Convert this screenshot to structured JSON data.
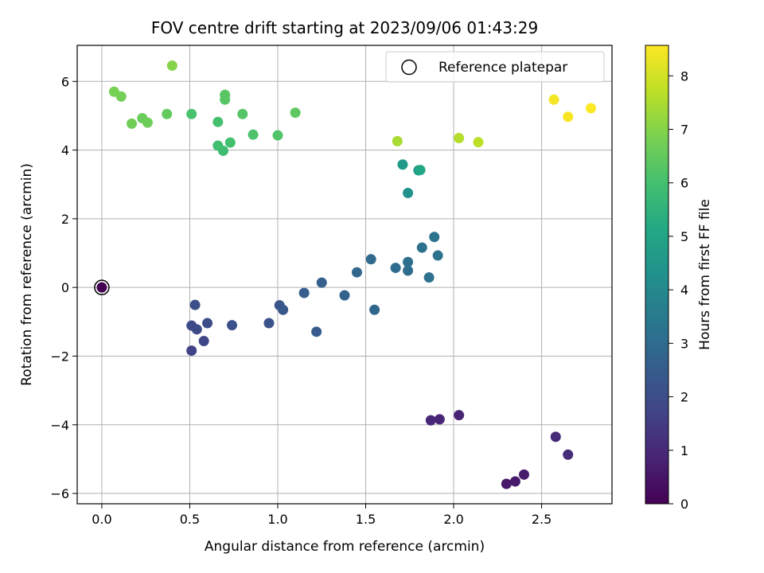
{
  "chart_data": {
    "type": "scatter",
    "title": "FOV centre drift starting at 2023/09/06 01:43:29",
    "xlabel": "Angular distance from reference (arcmin)",
    "ylabel": "Rotation from reference (arcmin)",
    "xlim": [
      -0.14,
      2.9
    ],
    "ylim": [
      -6.3,
      7.05
    ],
    "xticks": [
      0.0,
      0.5,
      1.0,
      1.5,
      2.0,
      2.5
    ],
    "xtick_labels": [
      "0.0",
      "0.5",
      "1.0",
      "1.5",
      "2.0",
      "2.5"
    ],
    "yticks": [
      -6,
      -4,
      -2,
      0,
      2,
      4,
      6
    ],
    "ytick_labels": [
      "−6",
      "−4",
      "−2",
      "0",
      "2",
      "4",
      "6"
    ],
    "grid": true,
    "legend": {
      "position": "top-right",
      "entries": [
        "Reference platepar"
      ]
    },
    "colorbar": {
      "label": "Hours from first FF file",
      "min": 0,
      "max": 8.57,
      "ticks": [
        0,
        1,
        2,
        3,
        4,
        5,
        6,
        7,
        8
      ],
      "tick_labels": [
        "0",
        "1",
        "2",
        "3",
        "4",
        "5",
        "6",
        "7",
        "8"
      ],
      "colormap": "viridis"
    },
    "reference_point": {
      "x": 0.0,
      "y": 0.0
    },
    "points": [
      {
        "x": 0.0,
        "y": 0.0,
        "t": 0.0
      },
      {
        "x": 2.3,
        "y": -5.72,
        "t": 0.55
      },
      {
        "x": 2.35,
        "y": -5.65,
        "t": 0.6
      },
      {
        "x": 2.4,
        "y": -5.45,
        "t": 0.65
      },
      {
        "x": 2.03,
        "y": -3.72,
        "t": 0.85
      },
      {
        "x": 1.92,
        "y": -3.84,
        "t": 0.9
      },
      {
        "x": 1.87,
        "y": -3.87,
        "t": 0.95
      },
      {
        "x": 2.58,
        "y": -4.35,
        "t": 1.05
      },
      {
        "x": 2.65,
        "y": -4.87,
        "t": 1.1
      },
      {
        "x": 0.51,
        "y": -1.84,
        "t": 1.7
      },
      {
        "x": 0.58,
        "y": -1.56,
        "t": 1.8
      },
      {
        "x": 0.51,
        "y": -1.11,
        "t": 1.9
      },
      {
        "x": 0.54,
        "y": -1.22,
        "t": 1.95
      },
      {
        "x": 0.6,
        "y": -1.04,
        "t": 2.0
      },
      {
        "x": 0.53,
        "y": -0.51,
        "t": 2.05
      },
      {
        "x": 0.74,
        "y": -1.1,
        "t": 2.1
      },
      {
        "x": 0.95,
        "y": -1.04,
        "t": 2.2
      },
      {
        "x": 1.01,
        "y": -0.52,
        "t": 2.3
      },
      {
        "x": 1.03,
        "y": -0.65,
        "t": 2.35
      },
      {
        "x": 1.22,
        "y": -1.29,
        "t": 2.45
      },
      {
        "x": 1.15,
        "y": -0.16,
        "t": 2.5
      },
      {
        "x": 1.25,
        "y": 0.14,
        "t": 2.6
      },
      {
        "x": 1.38,
        "y": -0.23,
        "t": 2.7
      },
      {
        "x": 1.45,
        "y": 0.44,
        "t": 2.8
      },
      {
        "x": 1.55,
        "y": -0.65,
        "t": 2.85
      },
      {
        "x": 1.53,
        "y": 0.82,
        "t": 2.95
      },
      {
        "x": 1.67,
        "y": 0.57,
        "t": 3.0
      },
      {
        "x": 1.74,
        "y": 0.49,
        "t": 3.05
      },
      {
        "x": 1.74,
        "y": 0.74,
        "t": 3.1
      },
      {
        "x": 1.86,
        "y": 0.29,
        "t": 3.15
      },
      {
        "x": 1.82,
        "y": 1.16,
        "t": 3.2
      },
      {
        "x": 1.91,
        "y": 0.93,
        "t": 3.25
      },
      {
        "x": 1.89,
        "y": 1.47,
        "t": 3.3
      },
      {
        "x": 1.74,
        "y": 2.75,
        "t": 4.3
      },
      {
        "x": 1.8,
        "y": 3.41,
        "t": 4.5
      },
      {
        "x": 1.71,
        "y": 3.58,
        "t": 4.6
      },
      {
        "x": 1.81,
        "y": 3.42,
        "t": 5.1
      },
      {
        "x": 0.69,
        "y": 3.98,
        "t": 5.9
      },
      {
        "x": 0.66,
        "y": 4.13,
        "t": 5.95
      },
      {
        "x": 0.73,
        "y": 4.22,
        "t": 6.0
      },
      {
        "x": 0.66,
        "y": 4.82,
        "t": 6.05
      },
      {
        "x": 0.51,
        "y": 5.05,
        "t": 6.1
      },
      {
        "x": 0.86,
        "y": 4.45,
        "t": 6.15
      },
      {
        "x": 1.0,
        "y": 4.43,
        "t": 6.2
      },
      {
        "x": 0.8,
        "y": 5.05,
        "t": 6.25
      },
      {
        "x": 0.7,
        "y": 5.47,
        "t": 6.3
      },
      {
        "x": 0.7,
        "y": 5.61,
        "t": 6.35
      },
      {
        "x": 1.1,
        "y": 5.09,
        "t": 6.4
      },
      {
        "x": 0.37,
        "y": 5.05,
        "t": 6.5
      },
      {
        "x": 0.23,
        "y": 4.93,
        "t": 6.6
      },
      {
        "x": 0.26,
        "y": 4.8,
        "t": 6.65
      },
      {
        "x": 0.17,
        "y": 4.77,
        "t": 6.7
      },
      {
        "x": 0.11,
        "y": 5.56,
        "t": 6.75
      },
      {
        "x": 0.07,
        "y": 5.7,
        "t": 6.8
      },
      {
        "x": 0.4,
        "y": 6.46,
        "t": 7.0
      },
      {
        "x": 1.68,
        "y": 4.26,
        "t": 7.45
      },
      {
        "x": 2.03,
        "y": 4.35,
        "t": 7.6
      },
      {
        "x": 2.14,
        "y": 4.23,
        "t": 7.7
      },
      {
        "x": 2.57,
        "y": 5.47,
        "t": 8.45
      },
      {
        "x": 2.65,
        "y": 4.97,
        "t": 8.5
      },
      {
        "x": 2.78,
        "y": 5.22,
        "t": 8.55
      }
    ]
  }
}
